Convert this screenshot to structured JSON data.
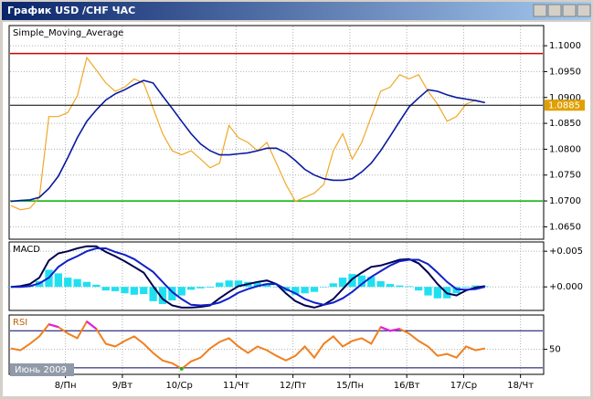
{
  "window": {
    "title": "График USD /CHF  ЧАС"
  },
  "chart_data": [
    {
      "type": "line",
      "indicator": "Simple_Moving_Average",
      "period_label": "Июнь 2009",
      "x": [
        0,
        4,
        8,
        12,
        16,
        20,
        24,
        28,
        32,
        36,
        40,
        44,
        48,
        52,
        56,
        60,
        64,
        68,
        72,
        76,
        80,
        84,
        88,
        92,
        96,
        100,
        104,
        108,
        112,
        116,
        120,
        124,
        128,
        132,
        136,
        140,
        144,
        148,
        152,
        156,
        160,
        164,
        168,
        172,
        176,
        180,
        184,
        188,
        192,
        196,
        200
      ],
      "xlim": [
        0,
        224
      ],
      "xticks": [
        {
          "value": 23,
          "label": "8/Пн"
        },
        {
          "value": 47,
          "label": "9/Вт"
        },
        {
          "value": 71,
          "label": "10/Ср"
        },
        {
          "value": 95,
          "label": "11/Чт"
        },
        {
          "value": 119,
          "label": "12/Пт"
        },
        {
          "value": 143,
          "label": "15/Пн"
        },
        {
          "value": 167,
          "label": "16/Вт"
        },
        {
          "value": 191,
          "label": "17/Ср"
        },
        {
          "value": 215,
          "label": "18/Чт"
        }
      ],
      "ylim": [
        1.0626,
        1.1039
      ],
      "yticks": [
        {
          "value": 1.1,
          "label": "1.1000"
        },
        {
          "value": 1.095,
          "label": "1.0950"
        },
        {
          "value": 1.09,
          "label": "1.0900"
        },
        {
          "value": 1.085,
          "label": "1.0850"
        },
        {
          "value": 1.08,
          "label": "1.0800"
        },
        {
          "value": 1.075,
          "label": "1.0750"
        },
        {
          "value": 1.07,
          "label": "1.0700"
        },
        {
          "value": 1.065,
          "label": "1.0650"
        }
      ],
      "grid": true,
      "hlines": [
        {
          "value": 1.0985,
          "color": "#d00000"
        },
        {
          "value": 1.07,
          "color": "#00b000"
        }
      ],
      "current_price": 1.0885,
      "series": [
        {
          "name": "USD/CHF",
          "color": "#f0a828",
          "values": [
            1.0691,
            1.0683,
            1.0686,
            1.0707,
            1.0863,
            1.0863,
            1.0871,
            1.0903,
            1.0977,
            1.0953,
            1.0928,
            1.0912,
            1.092,
            1.0936,
            1.0928,
            1.0879,
            1.083,
            1.0797,
            1.0789,
            1.0797,
            1.0781,
            1.0764,
            1.0773,
            1.0846,
            1.0822,
            1.0813,
            1.0797,
            1.0813,
            1.0773,
            1.0732,
            1.0699,
            1.0707,
            1.0715,
            1.0732,
            1.0797,
            1.083,
            1.0781,
            1.0813,
            1.0863,
            1.0912,
            1.092,
            1.0944,
            1.0936,
            1.0944,
            1.0912,
            1.0887,
            1.0854,
            1.0863,
            1.0887,
            1.0895,
            1.089
          ]
        },
        {
          "name": "Simple_Moving_Average",
          "color": "#0a1aa0",
          "values": [
            1.0699,
            1.0701,
            1.0702,
            1.0707,
            1.0724,
            1.0748,
            1.0784,
            1.0822,
            1.0854,
            1.0876,
            1.0895,
            1.0907,
            1.0915,
            1.0925,
            1.0933,
            1.0928,
            1.0903,
            1.0879,
            1.0854,
            1.083,
            1.081,
            1.0797,
            1.0789,
            1.0789,
            1.0791,
            1.0793,
            1.0797,
            1.0802,
            1.0802,
            1.0793,
            1.0778,
            1.0761,
            1.075,
            1.0743,
            1.074,
            1.074,
            1.0743,
            1.0756,
            1.0773,
            1.0797,
            1.0825,
            1.0854,
            1.0882,
            1.0899,
            1.0915,
            1.0912,
            1.0905,
            1.09,
            1.0897,
            1.0894,
            1.089
          ]
        }
      ]
    },
    {
      "type": "macd",
      "indicator": "MACD",
      "ylim": [
        -0.0033,
        0.0063
      ],
      "yticks": [
        {
          "value": 0.005,
          "label": "+0.005"
        },
        {
          "value": 0,
          "label": "+0.000"
        }
      ],
      "grid": true,
      "series": [
        {
          "name": "Histogram",
          "color": "#20e0f0",
          "values": [
            0,
            0.0001,
            0.0003,
            0.0008,
            0.0024,
            0.0019,
            0.0013,
            0.0011,
            0.0007,
            0.0003,
            -0.0005,
            -0.0006,
            -0.0009,
            -0.0011,
            -0.001,
            -0.002,
            -0.0024,
            -0.0019,
            -0.0012,
            -0.0004,
            -0.0002,
            -0.0001,
            0.0006,
            0.0009,
            0.0009,
            0.0007,
            0.0006,
            0.0005,
            0,
            -0.0006,
            -0.0011,
            -0.0009,
            -0.0007,
            0,
            0.0005,
            0.0013,
            0.0018,
            0.0016,
            0.0014,
            0.0008,
            0.0004,
            0.0002,
            0.0001,
            -0.0005,
            -0.0012,
            -0.0016,
            -0.0016,
            -0.0009,
            -0.0001,
            0.0002,
            0.0001
          ]
        },
        {
          "name": "Main",
          "color": "#000050",
          "values": [
            0,
            0.0001,
            0.0004,
            0.0013,
            0.0037,
            0.0047,
            0.005,
            0.0054,
            0.0057,
            0.0057,
            0.0049,
            0.0043,
            0.0036,
            0.0028,
            0.002,
            0.0001,
            -0.0017,
            -0.0026,
            -0.0029,
            -0.0029,
            -0.0028,
            -0.0026,
            -0.0016,
            -0.0007,
            0.0001,
            0.0004,
            0.0007,
            0.0009,
            0.0004,
            -0.0009,
            -0.002,
            -0.0026,
            -0.0029,
            -0.0025,
            -0.0017,
            -0.0003,
            0.0011,
            0.002,
            0.0028,
            0.003,
            0.0034,
            0.0038,
            0.0039,
            0.0033,
            0.002,
            0.0004,
            -0.0009,
            -0.0012,
            -0.0005,
            -0.0001,
            0.0001
          ]
        },
        {
          "name": "Signal",
          "color": "#1020c8",
          "values": [
            0,
            0,
            0.0001,
            0.0005,
            0.0013,
            0.0028,
            0.0037,
            0.0043,
            0.005,
            0.0054,
            0.0054,
            0.0049,
            0.0045,
            0.0039,
            0.003,
            0.0021,
            0.0007,
            -0.0007,
            -0.0017,
            -0.0025,
            -0.0026,
            -0.0025,
            -0.0022,
            -0.0016,
            -0.0008,
            -0.0003,
            0.0001,
            0.0004,
            0.0004,
            -0.0003,
            -0.0009,
            -0.0017,
            -0.0022,
            -0.0025,
            -0.0022,
            -0.0016,
            -0.0007,
            0.0004,
            0.0014,
            0.0022,
            0.003,
            0.0036,
            0.0038,
            0.0038,
            0.0032,
            0.002,
            0.0007,
            -0.0003,
            -0.0004,
            -0.0003,
            0
          ]
        }
      ]
    },
    {
      "type": "rsi",
      "indicator": "RSI",
      "ylim": [
        23,
        87
      ],
      "yticks": [
        50
      ],
      "grid": true,
      "levels": [
        70,
        30
      ],
      "upper_color": "#e020e0",
      "lower_color": "#20b020",
      "series": [
        {
          "name": "RSI",
          "color": "#f08020",
          "values": [
            51,
            49,
            56,
            64,
            77,
            74,
            67,
            62,
            80,
            72,
            56,
            53,
            59,
            64,
            56,
            46,
            38,
            35,
            29,
            37,
            41,
            51,
            58,
            62,
            53,
            46,
            53,
            49,
            43,
            38,
            43,
            53,
            41,
            56,
            64,
            53,
            59,
            62,
            56,
            74,
            70,
            72,
            67,
            59,
            53,
            43,
            45,
            41,
            53,
            49,
            51
          ]
        }
      ]
    }
  ]
}
